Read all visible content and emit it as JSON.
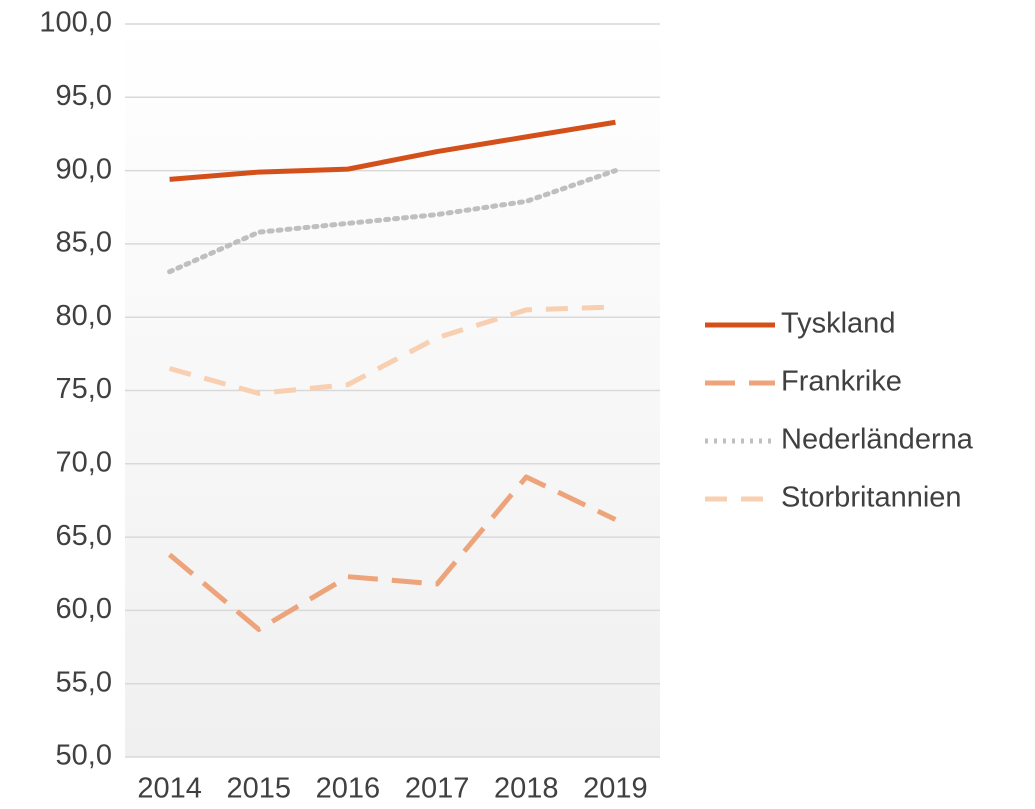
{
  "chart_data": {
    "type": "line",
    "categories": [
      "2014",
      "2015",
      "2016",
      "2017",
      "2018",
      "2019"
    ],
    "series": [
      {
        "name": "Tyskland",
        "color": "#d4501a",
        "dash": "solid",
        "values": [
          89.4,
          89.9,
          90.1,
          91.3,
          92.3,
          93.3
        ]
      },
      {
        "name": "Frankrike",
        "color": "#eda47a",
        "dash": "long-dash",
        "values": [
          63.8,
          58.7,
          62.3,
          61.8,
          69.1,
          66.2
        ]
      },
      {
        "name": "Nederländerna",
        "color": "#bfbfbf",
        "dash": "dot",
        "values": [
          83.1,
          85.8,
          86.4,
          87.0,
          87.9,
          90.0
        ]
      },
      {
        "name": "Storbritannien",
        "color": "#f8cfb0",
        "dash": "dash",
        "values": [
          76.5,
          74.8,
          75.4,
          78.6,
          80.5,
          80.7
        ]
      }
    ],
    "ylim": [
      50,
      100
    ],
    "yticks": [
      {
        "value": 50,
        "label": "50,0"
      },
      {
        "value": 55,
        "label": "55,0"
      },
      {
        "value": 60,
        "label": "60,0"
      },
      {
        "value": 65,
        "label": "65,0"
      },
      {
        "value": 70,
        "label": "70,0"
      },
      {
        "value": 75,
        "label": "75,0"
      },
      {
        "value": 80,
        "label": "80,0"
      },
      {
        "value": 85,
        "label": "85,0"
      },
      {
        "value": 90,
        "label": "90,0"
      },
      {
        "value": 95,
        "label": "95,0"
      },
      {
        "value": 100,
        "label": "100,0"
      }
    ],
    "grid": true,
    "legend": "right"
  }
}
